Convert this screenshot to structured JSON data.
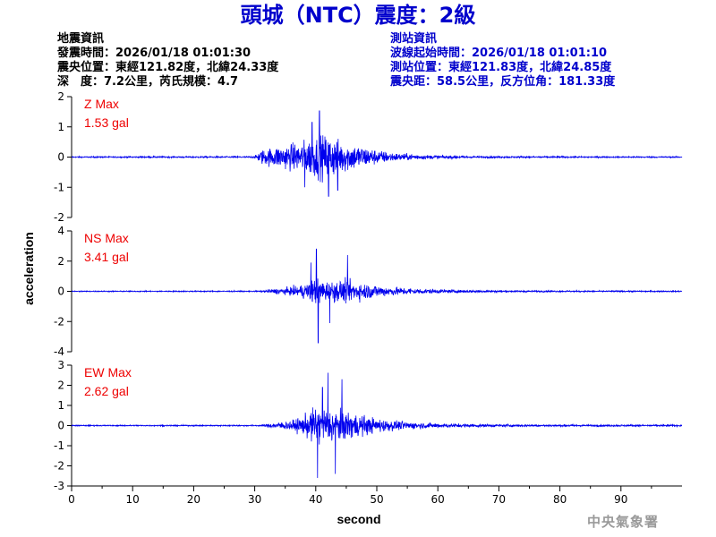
{
  "title": "頭城（NTC）震度：2級",
  "quake_info": {
    "heading": "地震資訊",
    "origin_time": "發震時間：2026/01/18 01:01:30",
    "epicenter": "震央位置：東經121.82度，北緯24.33度",
    "depth_magnitude": "深　度：7.2公里，芮氏規模：4.7"
  },
  "station_info": {
    "heading": "測站資訊",
    "waveform_start": "波線起始時間：2026/01/18 01:01:10",
    "location": "測站位置：東經121.83度，北緯24.85度",
    "distance": "震央距：58.5公里，反方位角：181.33度"
  },
  "watermark": "中央氣象署",
  "colors": {
    "trace": "#0000ee",
    "annotation": "#ee0000",
    "title": "#0000cc"
  },
  "chart_data": {
    "type": "line",
    "xlabel": "second",
    "ylabel": "acceleration",
    "xlim": [
      0,
      100
    ],
    "xticks": [
      0,
      10,
      20,
      30,
      40,
      50,
      60,
      70,
      80,
      90
    ],
    "panels": [
      {
        "component": "Z",
        "max_label": "Z Max",
        "max_value": "1.53 gal",
        "ylim": [
          -2,
          2
        ],
        "yticks": [
          -2,
          -1,
          0,
          1,
          2
        ],
        "noise_level": 0.03,
        "envelope": [
          [
            0,
            0.03
          ],
          [
            30,
            0.04
          ],
          [
            31,
            0.35
          ],
          [
            34,
            0.55
          ],
          [
            37,
            0.7
          ],
          [
            40,
            1.0
          ],
          [
            42,
            1.1
          ],
          [
            44,
            0.8
          ],
          [
            47,
            0.6
          ],
          [
            50,
            0.35
          ],
          [
            53,
            0.2
          ],
          [
            58,
            0.1
          ],
          [
            65,
            0.05
          ],
          [
            75,
            0.04
          ],
          [
            100,
            0.03
          ]
        ],
        "peaks": [
          [
            40.6,
            1.53
          ],
          [
            42.1,
            -1.3
          ],
          [
            39.4,
            1.15
          ],
          [
            43.6,
            -1.1
          ],
          [
            38.2,
            -1.0
          ]
        ]
      },
      {
        "component": "NS",
        "max_label": "NS Max",
        "max_value": "3.41 gal",
        "ylim": [
          -4,
          4
        ],
        "yticks": [
          -4,
          -2,
          0,
          2,
          4
        ],
        "noise_level": 0.05,
        "envelope": [
          [
            0,
            0.05
          ],
          [
            31,
            0.06
          ],
          [
            33,
            0.25
          ],
          [
            36,
            0.4
          ],
          [
            38,
            0.7
          ],
          [
            40,
            1.3
          ],
          [
            42,
            1.0
          ],
          [
            45,
            1.1
          ],
          [
            48,
            0.8
          ],
          [
            52,
            0.45
          ],
          [
            56,
            0.3
          ],
          [
            62,
            0.15
          ],
          [
            70,
            0.1
          ],
          [
            80,
            0.07
          ],
          [
            100,
            0.06
          ]
        ],
        "peaks": [
          [
            40.4,
            -3.41
          ],
          [
            40.1,
            2.8
          ],
          [
            45.2,
            2.4
          ],
          [
            42.3,
            -2.1
          ],
          [
            39.2,
            1.9
          ]
        ]
      },
      {
        "component": "EW",
        "max_label": "EW Max",
        "max_value": "2.62 gal",
        "ylim": [
          -3,
          3
        ],
        "yticks": [
          -3,
          -2,
          -1,
          0,
          1,
          2,
          3
        ],
        "noise_level": 0.04,
        "envelope": [
          [
            0,
            0.04
          ],
          [
            31,
            0.05
          ],
          [
            33,
            0.2
          ],
          [
            36,
            0.35
          ],
          [
            38,
            0.7
          ],
          [
            40,
            1.4
          ],
          [
            42,
            1.3
          ],
          [
            44,
            1.2
          ],
          [
            46,
            1.0
          ],
          [
            49,
            0.6
          ],
          [
            53,
            0.35
          ],
          [
            58,
            0.2
          ],
          [
            65,
            0.12
          ],
          [
            75,
            0.08
          ],
          [
            100,
            0.06
          ]
        ],
        "peaks": [
          [
            42.0,
            2.62
          ],
          [
            40.3,
            -2.6
          ],
          [
            44.3,
            2.3
          ],
          [
            43.2,
            -2.4
          ],
          [
            41.1,
            1.9
          ]
        ]
      }
    ]
  }
}
